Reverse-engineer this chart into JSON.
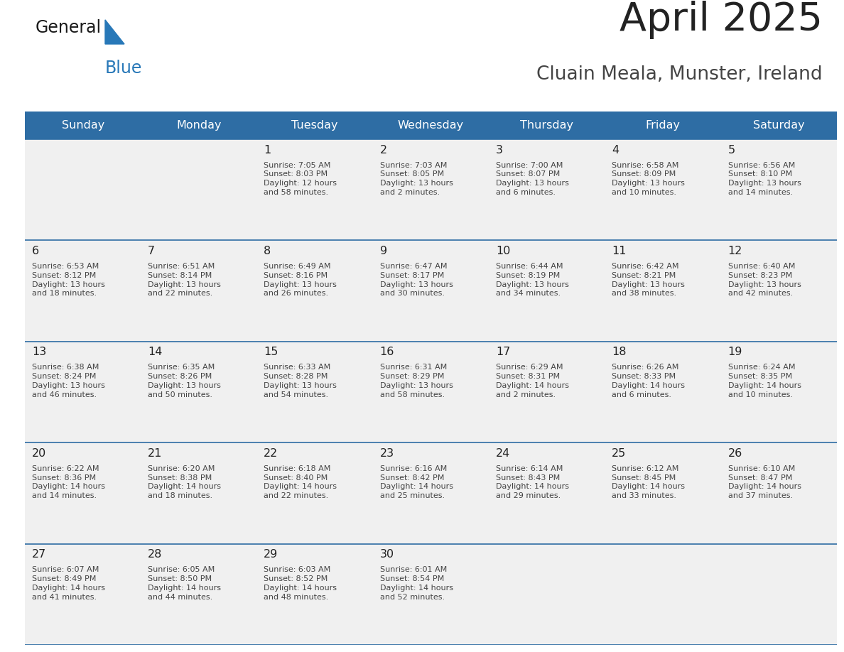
{
  "title": "April 2025",
  "subtitle": "Cluain Meala, Munster, Ireland",
  "days_of_week": [
    "Sunday",
    "Monday",
    "Tuesday",
    "Wednesday",
    "Thursday",
    "Friday",
    "Saturday"
  ],
  "header_bg": "#2E6DA4",
  "header_text_color": "#FFFFFF",
  "cell_bg": "#F0F0F0",
  "border_color": "#2E6DA4",
  "day_num_color": "#222222",
  "cell_text_color": "#444444",
  "title_color": "#222222",
  "subtitle_color": "#444444",
  "logo_general_color": "#1a1a1a",
  "logo_blue_color": "#2878B8",
  "fig_width": 11.88,
  "fig_height": 9.18,
  "weeks": [
    {
      "days": [
        {
          "date": "",
          "info": ""
        },
        {
          "date": "",
          "info": ""
        },
        {
          "date": "1",
          "info": "Sunrise: 7:05 AM\nSunset: 8:03 PM\nDaylight: 12 hours\nand 58 minutes."
        },
        {
          "date": "2",
          "info": "Sunrise: 7:03 AM\nSunset: 8:05 PM\nDaylight: 13 hours\nand 2 minutes."
        },
        {
          "date": "3",
          "info": "Sunrise: 7:00 AM\nSunset: 8:07 PM\nDaylight: 13 hours\nand 6 minutes."
        },
        {
          "date": "4",
          "info": "Sunrise: 6:58 AM\nSunset: 8:09 PM\nDaylight: 13 hours\nand 10 minutes."
        },
        {
          "date": "5",
          "info": "Sunrise: 6:56 AM\nSunset: 8:10 PM\nDaylight: 13 hours\nand 14 minutes."
        }
      ]
    },
    {
      "days": [
        {
          "date": "6",
          "info": "Sunrise: 6:53 AM\nSunset: 8:12 PM\nDaylight: 13 hours\nand 18 minutes."
        },
        {
          "date": "7",
          "info": "Sunrise: 6:51 AM\nSunset: 8:14 PM\nDaylight: 13 hours\nand 22 minutes."
        },
        {
          "date": "8",
          "info": "Sunrise: 6:49 AM\nSunset: 8:16 PM\nDaylight: 13 hours\nand 26 minutes."
        },
        {
          "date": "9",
          "info": "Sunrise: 6:47 AM\nSunset: 8:17 PM\nDaylight: 13 hours\nand 30 minutes."
        },
        {
          "date": "10",
          "info": "Sunrise: 6:44 AM\nSunset: 8:19 PM\nDaylight: 13 hours\nand 34 minutes."
        },
        {
          "date": "11",
          "info": "Sunrise: 6:42 AM\nSunset: 8:21 PM\nDaylight: 13 hours\nand 38 minutes."
        },
        {
          "date": "12",
          "info": "Sunrise: 6:40 AM\nSunset: 8:23 PM\nDaylight: 13 hours\nand 42 minutes."
        }
      ]
    },
    {
      "days": [
        {
          "date": "13",
          "info": "Sunrise: 6:38 AM\nSunset: 8:24 PM\nDaylight: 13 hours\nand 46 minutes."
        },
        {
          "date": "14",
          "info": "Sunrise: 6:35 AM\nSunset: 8:26 PM\nDaylight: 13 hours\nand 50 minutes."
        },
        {
          "date": "15",
          "info": "Sunrise: 6:33 AM\nSunset: 8:28 PM\nDaylight: 13 hours\nand 54 minutes."
        },
        {
          "date": "16",
          "info": "Sunrise: 6:31 AM\nSunset: 8:29 PM\nDaylight: 13 hours\nand 58 minutes."
        },
        {
          "date": "17",
          "info": "Sunrise: 6:29 AM\nSunset: 8:31 PM\nDaylight: 14 hours\nand 2 minutes."
        },
        {
          "date": "18",
          "info": "Sunrise: 6:26 AM\nSunset: 8:33 PM\nDaylight: 14 hours\nand 6 minutes."
        },
        {
          "date": "19",
          "info": "Sunrise: 6:24 AM\nSunset: 8:35 PM\nDaylight: 14 hours\nand 10 minutes."
        }
      ]
    },
    {
      "days": [
        {
          "date": "20",
          "info": "Sunrise: 6:22 AM\nSunset: 8:36 PM\nDaylight: 14 hours\nand 14 minutes."
        },
        {
          "date": "21",
          "info": "Sunrise: 6:20 AM\nSunset: 8:38 PM\nDaylight: 14 hours\nand 18 minutes."
        },
        {
          "date": "22",
          "info": "Sunrise: 6:18 AM\nSunset: 8:40 PM\nDaylight: 14 hours\nand 22 minutes."
        },
        {
          "date": "23",
          "info": "Sunrise: 6:16 AM\nSunset: 8:42 PM\nDaylight: 14 hours\nand 25 minutes."
        },
        {
          "date": "24",
          "info": "Sunrise: 6:14 AM\nSunset: 8:43 PM\nDaylight: 14 hours\nand 29 minutes."
        },
        {
          "date": "25",
          "info": "Sunrise: 6:12 AM\nSunset: 8:45 PM\nDaylight: 14 hours\nand 33 minutes."
        },
        {
          "date": "26",
          "info": "Sunrise: 6:10 AM\nSunset: 8:47 PM\nDaylight: 14 hours\nand 37 minutes."
        }
      ]
    },
    {
      "days": [
        {
          "date": "27",
          "info": "Sunrise: 6:07 AM\nSunset: 8:49 PM\nDaylight: 14 hours\nand 41 minutes."
        },
        {
          "date": "28",
          "info": "Sunrise: 6:05 AM\nSunset: 8:50 PM\nDaylight: 14 hours\nand 44 minutes."
        },
        {
          "date": "29",
          "info": "Sunrise: 6:03 AM\nSunset: 8:52 PM\nDaylight: 14 hours\nand 48 minutes."
        },
        {
          "date": "30",
          "info": "Sunrise: 6:01 AM\nSunset: 8:54 PM\nDaylight: 14 hours\nand 52 minutes."
        },
        {
          "date": "",
          "info": ""
        },
        {
          "date": "",
          "info": ""
        },
        {
          "date": "",
          "info": ""
        }
      ]
    }
  ]
}
